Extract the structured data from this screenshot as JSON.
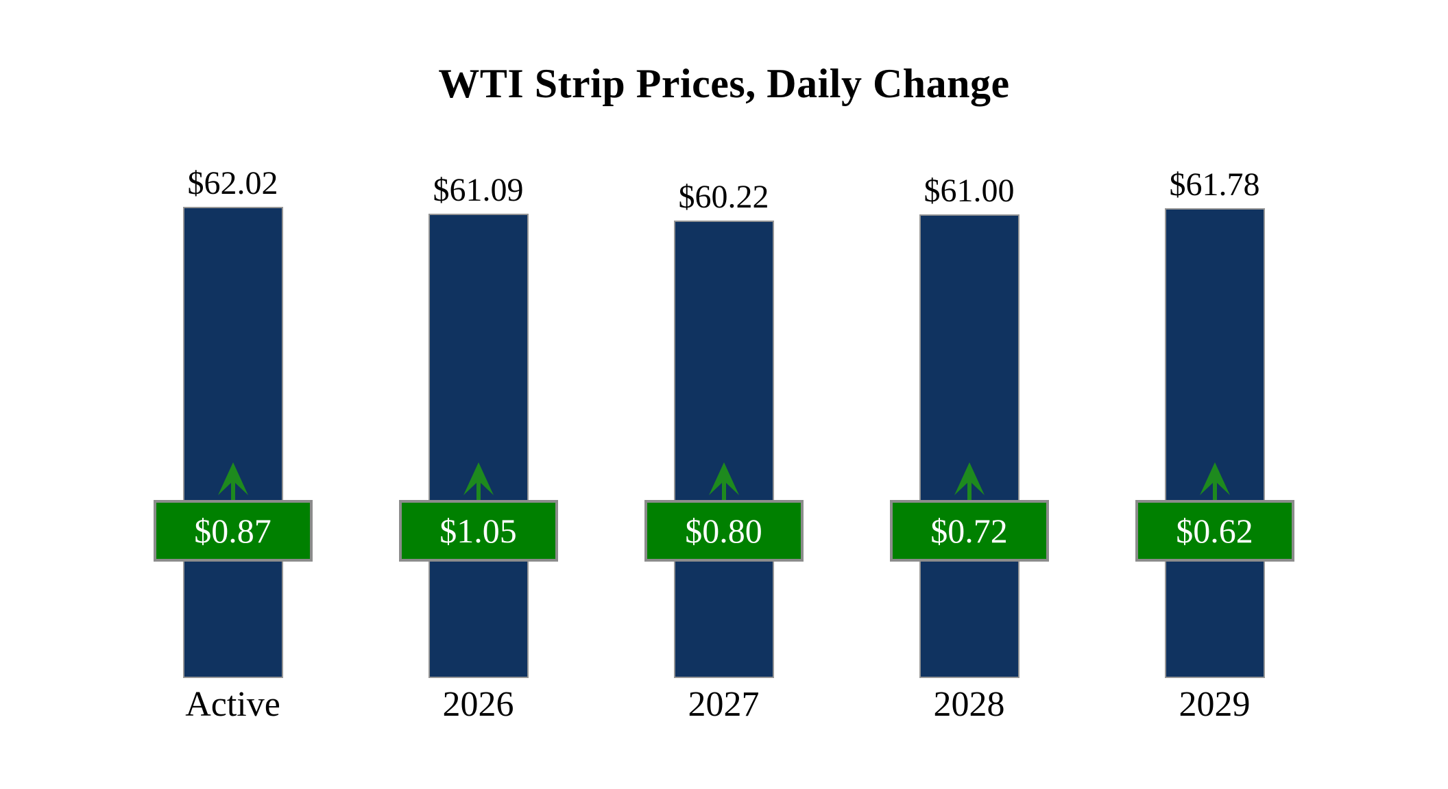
{
  "title": "WTI Strip Prices, Daily Change",
  "colors": {
    "background": "#FFFFFF",
    "text": "#000000",
    "bar": "#103360",
    "bar_border": "#969696",
    "badge": "#008000",
    "badge_border": "#8C8C8C",
    "badge_text": "#FFFFFF",
    "arrow": "#1E8A1E"
  },
  "chart_data": {
    "type": "bar",
    "title": "WTI Strip Prices, Daily Change",
    "categories": [
      "Active",
      "2026",
      "2027",
      "2028",
      "2029"
    ],
    "series": [
      {
        "name": "strip_price",
        "values": [
          62.02,
          61.09,
          60.22,
          61.0,
          61.78
        ],
        "labels": [
          "$62.02",
          "$61.09",
          "$60.22",
          "$61.00",
          "$61.78"
        ]
      },
      {
        "name": "daily_change",
        "direction": "up",
        "values": [
          0.87,
          1.05,
          0.8,
          0.72,
          0.62
        ],
        "labels": [
          "$0.87",
          "$1.05",
          "$0.80",
          "$0.72",
          "$0.62"
        ]
      }
    ],
    "ylim": [
      0,
      62.02
    ],
    "grid": false,
    "legend": "none",
    "axes_visible": false
  }
}
